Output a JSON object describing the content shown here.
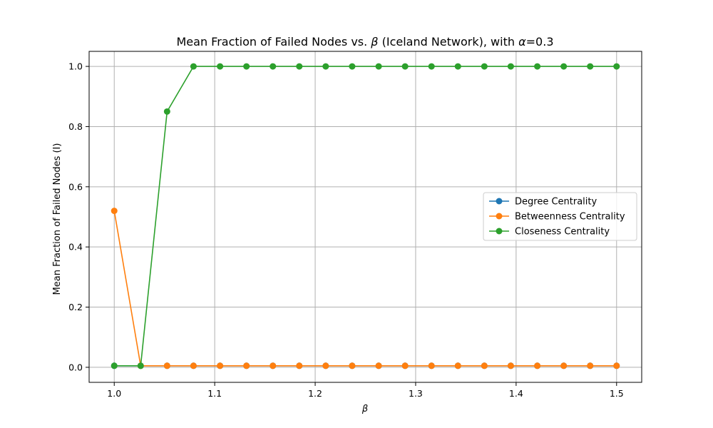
{
  "chart_data": {
    "type": "line",
    "title_parts": [
      "Mean Fraction of Failed Nodes vs. ",
      "β",
      " (Iceland Network), with ",
      "α",
      "=0.3"
    ],
    "xlabel": "β",
    "ylabel": "Mean Fraction of Failed Nodes (I)",
    "xlim": [
      0.975,
      1.525
    ],
    "ylim": [
      -0.05,
      1.05
    ],
    "xticks": [
      1.0,
      1.1,
      1.2,
      1.3,
      1.4,
      1.5
    ],
    "xtick_labels": [
      "1.0",
      "1.1",
      "1.2",
      "1.3",
      "1.4",
      "1.5"
    ],
    "yticks": [
      0.0,
      0.2,
      0.4,
      0.6,
      0.8,
      1.0
    ],
    "ytick_labels": [
      "0.0",
      "0.2",
      "0.4",
      "0.6",
      "0.8",
      "1.0"
    ],
    "grid": true,
    "legend_position": "center-right",
    "x": [
      1.0,
      1.0263,
      1.0526,
      1.0789,
      1.1053,
      1.1316,
      1.1579,
      1.1842,
      1.2105,
      1.2368,
      1.2632,
      1.2895,
      1.3158,
      1.3421,
      1.3684,
      1.3947,
      1.4211,
      1.4474,
      1.4737,
      1.5
    ],
    "series": [
      {
        "name": "Degree Centrality",
        "color": "#1f77b4",
        "values": [
          0.005,
          0.005,
          0.005,
          0.005,
          0.005,
          0.005,
          0.005,
          0.005,
          0.005,
          0.005,
          0.005,
          0.005,
          0.005,
          0.005,
          0.005,
          0.005,
          0.005,
          0.005,
          0.005,
          0.005
        ]
      },
      {
        "name": "Betweenness Centrality",
        "color": "#ff7f0e",
        "values": [
          0.52,
          0.005,
          0.005,
          0.005,
          0.005,
          0.005,
          0.005,
          0.005,
          0.005,
          0.005,
          0.005,
          0.005,
          0.005,
          0.005,
          0.005,
          0.005,
          0.005,
          0.005,
          0.005,
          0.005
        ]
      },
      {
        "name": "Closeness Centrality",
        "color": "#2ca02c",
        "values": [
          0.005,
          0.005,
          0.85,
          1.0,
          1.0,
          1.0,
          1.0,
          1.0,
          1.0,
          1.0,
          1.0,
          1.0,
          1.0,
          1.0,
          1.0,
          1.0,
          1.0,
          1.0,
          1.0,
          1.0
        ]
      }
    ]
  }
}
